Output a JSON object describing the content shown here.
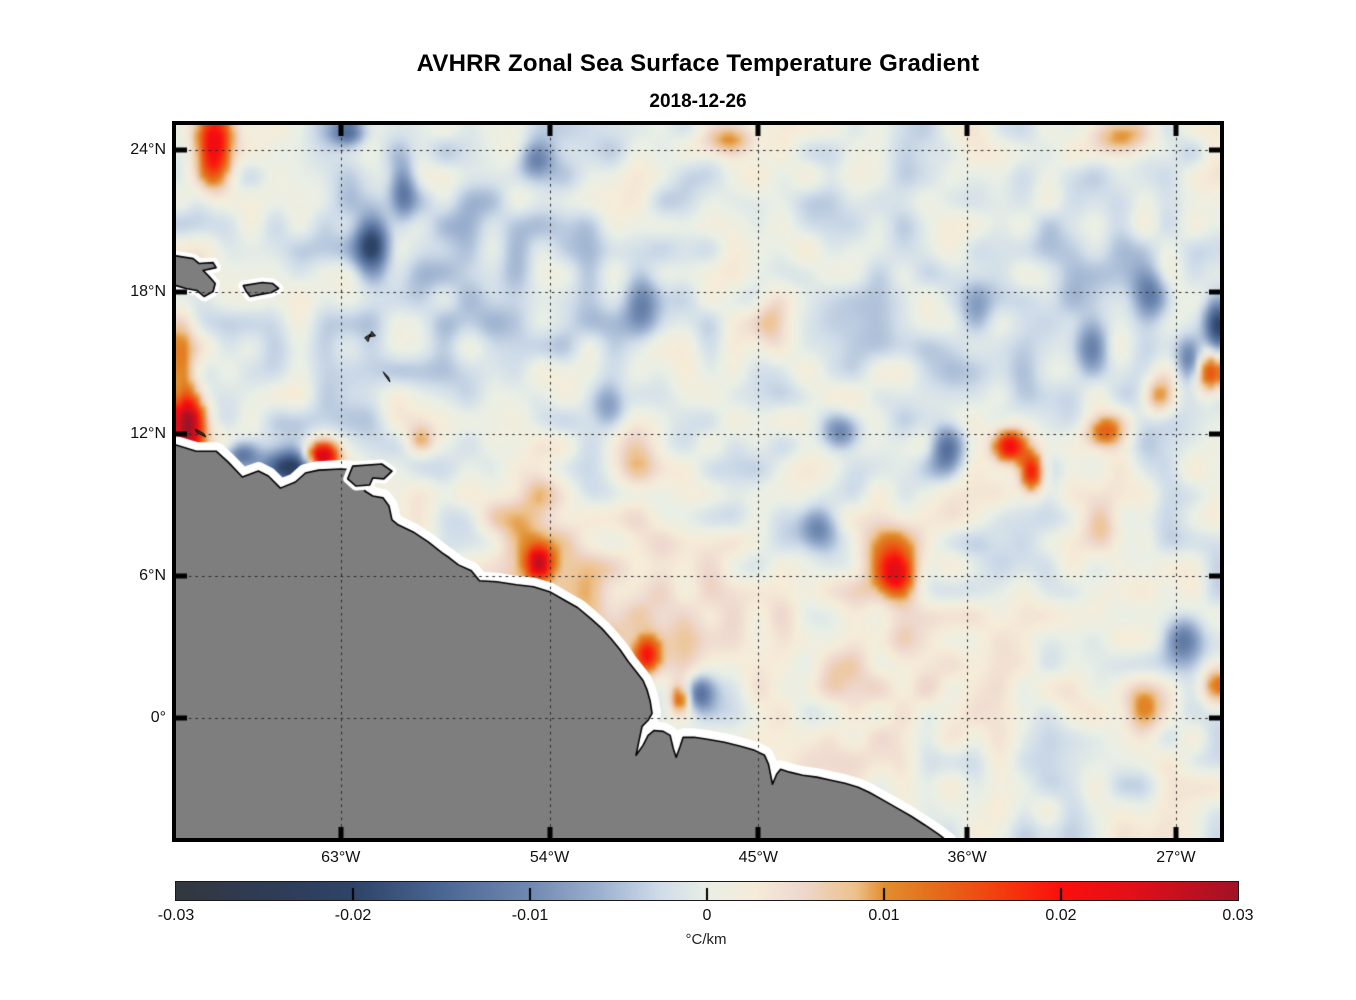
{
  "title": "AVHRR Zonal Sea Surface Temperature Gradient",
  "subtitle": "2018-12-26",
  "chart_data": {
    "type": "heatmap",
    "description": "Geographic map of zonal SST gradient over the western tropical Atlantic; smoothed anomaly field (blue = negative, orange/red = positive) with gray land mask and white coastal data-gap halo; dotted lat/lon graticule.",
    "geo": {
      "lon_range": [
        -70.1,
        -25.1
      ],
      "lat_range": [
        -5.05,
        25.05
      ]
    },
    "x_ticks": [
      {
        "value": -63,
        "label": "63°W"
      },
      {
        "value": -54,
        "label": "54°W"
      },
      {
        "value": -45,
        "label": "45°W"
      },
      {
        "value": -36,
        "label": "36°W"
      },
      {
        "value": -27,
        "label": "27°W"
      }
    ],
    "y_ticks": [
      {
        "value": 24,
        "label": "24°N"
      },
      {
        "value": 18,
        "label": "18°N"
      },
      {
        "value": 12,
        "label": "12°N"
      },
      {
        "value": 6,
        "label": "6°N"
      },
      {
        "value": 0,
        "label": "0°"
      }
    ],
    "grid_style": "dotted",
    "land_color": "#7e7e7e",
    "coast_line_color": "#000000",
    "coast_halo_color": "#ffffff",
    "colorbar": {
      "min": -0.03,
      "max": 0.03,
      "tick_labels": [
        "-0.03",
        "-0.02",
        "-0.01",
        "0",
        "0.01",
        "0.02",
        "0.03"
      ],
      "tick_values": [
        -0.03,
        -0.02,
        -0.01,
        0,
        0.01,
        0.02,
        0.03
      ],
      "units_label": "°C/km",
      "stops": [
        {
          "t": 0.0,
          "c": "#33383f"
        },
        {
          "t": 0.085,
          "c": "#2f3c55"
        },
        {
          "t": 0.167,
          "c": "#2e4468"
        },
        {
          "t": 0.25,
          "c": "#4a6694"
        },
        {
          "t": 0.333,
          "c": "#7089b1"
        },
        {
          "t": 0.4,
          "c": "#9db2d0"
        },
        {
          "t": 0.455,
          "c": "#cfdce9"
        },
        {
          "t": 0.5,
          "c": "#e9efe6"
        },
        {
          "t": 0.545,
          "c": "#f6ecd8"
        },
        {
          "t": 0.59,
          "c": "#eed8cf"
        },
        {
          "t": 0.64,
          "c": "#edc18b"
        },
        {
          "t": 0.667,
          "c": "#e18f2e"
        },
        {
          "t": 0.71,
          "c": "#e4701c"
        },
        {
          "t": 0.78,
          "c": "#f43a0e"
        },
        {
          "t": 0.833,
          "c": "#fb0f0d"
        },
        {
          "t": 0.9,
          "c": "#e30f18"
        },
        {
          "t": 1.0,
          "c": "#a31226"
        }
      ]
    },
    "noise": {
      "seed": 11,
      "amplitude": 0.005,
      "coarse_nx": 44,
      "coarse_ny": 30
    },
    "features_format": [
      "lon_deg",
      "lat_deg",
      "amplitude_C_per_km",
      "sigma_lon_deg",
      "sigma_lat_deg"
    ],
    "features": [
      [
        -50.5,
        4.5,
        0.006,
        3.5,
        2.5
      ],
      [
        -40.0,
        2.0,
        0.004,
        4.0,
        2.5
      ],
      [
        -57.0,
        19.5,
        -0.003,
        5.0,
        3.5
      ],
      [
        -33.0,
        18.0,
        -0.002,
        4.0,
        4.0
      ],
      [
        -55.0,
        8.5,
        0.008,
        1.1,
        1.7
      ],
      [
        -50.3,
        11.3,
        0.008,
        0.8,
        1.3
      ],
      [
        -68.45,
        24.0,
        0.026,
        0.6,
        1.2
      ],
      [
        -69.6,
        12.3,
        0.03,
        0.5,
        1.1
      ],
      [
        -69.9,
        15.3,
        0.012,
        0.45,
        1.2
      ],
      [
        -63.8,
        11.05,
        0.028,
        0.5,
        0.45
      ],
      [
        -54.45,
        6.55,
        0.02,
        0.38,
        0.5
      ],
      [
        -49.8,
        2.7,
        0.016,
        0.4,
        0.55
      ],
      [
        -48.4,
        0.8,
        0.012,
        0.3,
        0.4
      ],
      [
        -39.3,
        6.9,
        0.013,
        1.0,
        1.2
      ],
      [
        -39.1,
        6.1,
        0.012,
        0.5,
        0.55
      ],
      [
        -34.2,
        11.5,
        0.022,
        0.5,
        0.5
      ],
      [
        -33.2,
        10.4,
        0.021,
        0.38,
        0.6
      ],
      [
        -30.1,
        12.1,
        0.013,
        0.6,
        0.5
      ],
      [
        -25.6,
        14.7,
        0.02,
        0.55,
        0.75
      ],
      [
        -46.3,
        24.4,
        0.01,
        0.9,
        0.5
      ],
      [
        -29.4,
        24.5,
        0.01,
        0.9,
        0.55
      ],
      [
        -59.55,
        11.7,
        0.012,
        0.45,
        0.45
      ],
      [
        -44.3,
        16.8,
        0.008,
        0.6,
        1.0
      ],
      [
        -27.8,
        13.6,
        0.012,
        0.5,
        0.6
      ],
      [
        -30.0,
        8.0,
        0.008,
        0.7,
        0.9
      ],
      [
        -28.5,
        0.5,
        0.008,
        0.8,
        0.8
      ],
      [
        -25.2,
        1.5,
        0.012,
        0.5,
        0.7
      ],
      [
        -61.65,
        20.1,
        -0.018,
        0.5,
        0.85
      ],
      [
        -62.7,
        24.75,
        -0.014,
        0.5,
        0.4
      ],
      [
        -60.3,
        22.3,
        -0.011,
        0.38,
        0.85
      ],
      [
        -65.3,
        10.55,
        -0.022,
        0.85,
        0.5
      ],
      [
        -67.3,
        11.1,
        -0.013,
        0.5,
        0.4
      ],
      [
        -25.2,
        16.5,
        -0.02,
        0.4,
        1.0
      ],
      [
        -26.3,
        14.9,
        -0.018,
        0.45,
        0.65
      ],
      [
        -28.1,
        17.8,
        -0.013,
        0.55,
        0.65
      ],
      [
        -47.6,
        1.05,
        -0.015,
        0.45,
        0.55
      ],
      [
        -42.5,
        8.1,
        -0.012,
        0.6,
        0.65
      ],
      [
        -36.9,
        11.3,
        -0.012,
        0.5,
        0.75
      ],
      [
        -26.7,
        3.3,
        -0.011,
        0.55,
        0.65
      ],
      [
        -30.6,
        15.6,
        -0.012,
        0.5,
        0.85
      ],
      [
        -54.6,
        23.6,
        -0.01,
        0.55,
        0.55
      ],
      [
        -51.4,
        13.4,
        -0.01,
        0.5,
        0.6
      ],
      [
        -41.4,
        12.0,
        -0.01,
        0.55,
        0.5
      ],
      [
        -50.0,
        17.5,
        -0.008,
        0.5,
        0.8
      ],
      [
        -35.6,
        17.6,
        -0.009,
        0.5,
        0.7
      ]
    ],
    "land_polygons": {
      "south_america_mainland": [
        [
          -71.2,
          11.54
        ],
        [
          -70.1,
          11.54
        ],
        [
          -69.23,
          11.28
        ],
        [
          -68.37,
          11.28
        ],
        [
          -67.85,
          10.82
        ],
        [
          -67.24,
          10.19
        ],
        [
          -66.55,
          10.44
        ],
        [
          -66.12,
          10.23
        ],
        [
          -65.6,
          9.72
        ],
        [
          -64.95,
          9.98
        ],
        [
          -64.52,
          10.36
        ],
        [
          -63.95,
          10.48
        ],
        [
          -63.0,
          10.53
        ],
        [
          -62.31,
          10.48
        ],
        [
          -62.14,
          10.19
        ],
        [
          -61.96,
          9.6
        ],
        [
          -61.62,
          9.39
        ],
        [
          -61.18,
          9.31
        ],
        [
          -60.92,
          8.97
        ],
        [
          -60.79,
          8.38
        ],
        [
          -60.53,
          8.17
        ],
        [
          -59.88,
          7.87
        ],
        [
          -59.23,
          7.45
        ],
        [
          -58.63,
          6.99
        ],
        [
          -58.32,
          6.78
        ],
        [
          -57.93,
          6.48
        ],
        [
          -57.37,
          6.23
        ],
        [
          -57.02,
          5.81
        ],
        [
          -56.29,
          5.77
        ],
        [
          -55.43,
          5.64
        ],
        [
          -54.69,
          5.56
        ],
        [
          -54.0,
          5.35
        ],
        [
          -53.39,
          5.01
        ],
        [
          -52.78,
          4.67
        ],
        [
          -52.22,
          4.21
        ],
        [
          -51.74,
          3.79
        ],
        [
          -51.31,
          3.32
        ],
        [
          -50.96,
          2.9
        ],
        [
          -50.61,
          2.4
        ],
        [
          -50.27,
          1.98
        ],
        [
          -49.97,
          1.6
        ],
        [
          -49.79,
          1.18
        ],
        [
          -49.66,
          0.72
        ],
        [
          -49.58,
          0.21
        ],
        [
          -49.75,
          -0.08
        ],
        [
          -50.01,
          -0.34
        ],
        [
          -50.14,
          -0.93
        ],
        [
          -50.27,
          -1.56
        ],
        [
          -49.97,
          -1.14
        ],
        [
          -49.75,
          -0.72
        ],
        [
          -49.49,
          -0.51
        ],
        [
          -49.1,
          -0.55
        ],
        [
          -48.8,
          -0.72
        ],
        [
          -48.67,
          -1.26
        ],
        [
          -48.54,
          -1.64
        ],
        [
          -48.37,
          -1.18
        ],
        [
          -48.24,
          -0.8
        ],
        [
          -47.76,
          -0.8
        ],
        [
          -47.2,
          -0.88
        ],
        [
          -46.46,
          -1.01
        ],
        [
          -45.77,
          -1.18
        ],
        [
          -45.16,
          -1.35
        ],
        [
          -44.73,
          -1.56
        ],
        [
          -44.56,
          -1.94
        ],
        [
          -44.39,
          -2.78
        ],
        [
          -44.21,
          -2.36
        ],
        [
          -44.04,
          -2.15
        ],
        [
          -43.65,
          -2.27
        ],
        [
          -43.09,
          -2.4
        ],
        [
          -42.48,
          -2.48
        ],
        [
          -41.87,
          -2.61
        ],
        [
          -41.27,
          -2.74
        ],
        [
          -40.7,
          -2.91
        ],
        [
          -40.23,
          -3.12
        ],
        [
          -39.62,
          -3.45
        ],
        [
          -39.02,
          -3.79
        ],
        [
          -38.41,
          -4.13
        ],
        [
          -37.81,
          -4.51
        ],
        [
          -37.24,
          -4.89
        ],
        [
          -36.85,
          -5.18
        ],
        [
          -36.6,
          -6.0
        ],
        [
          -71.2,
          -6.0
        ]
      ],
      "hispaniola_east": [
        [
          -70.6,
          19.6
        ],
        [
          -69.36,
          19.41
        ],
        [
          -69.1,
          19.2
        ],
        [
          -68.5,
          19.24
        ],
        [
          -68.37,
          19.03
        ],
        [
          -68.93,
          18.91
        ],
        [
          -68.67,
          18.65
        ],
        [
          -68.41,
          18.36
        ],
        [
          -68.5,
          18.02
        ],
        [
          -68.89,
          17.81
        ],
        [
          -69.19,
          18.06
        ],
        [
          -69.67,
          18.15
        ],
        [
          -70.1,
          18.27
        ],
        [
          -70.6,
          18.4
        ]
      ],
      "puerto_rico": [
        [
          -67.2,
          18.27
        ],
        [
          -66.38,
          18.4
        ],
        [
          -65.94,
          18.36
        ],
        [
          -65.68,
          18.15
        ],
        [
          -65.99,
          17.98
        ],
        [
          -66.51,
          17.89
        ],
        [
          -66.9,
          17.81
        ],
        [
          -67.07,
          18.02
        ]
      ],
      "trinidad_paria": [
        [
          -62.48,
          10.65
        ],
        [
          -61.23,
          10.74
        ],
        [
          -60.79,
          10.44
        ],
        [
          -61.14,
          10.11
        ],
        [
          -61.62,
          10.15
        ],
        [
          -61.75,
          9.85
        ],
        [
          -62.35,
          9.81
        ],
        [
          -62.7,
          10.11
        ],
        [
          -62.57,
          10.44
        ]
      ]
    },
    "island_marks": {
      "curacao_bonaire": [
        [
          -69.25,
          12.2
        ],
        [
          -68.9,
          12.02
        ],
        [
          -68.82,
          11.88
        ],
        [
          -69.18,
          12.06
        ]
      ],
      "guadeloupe_a": [
        [
          -61.95,
          16.08
        ],
        [
          -61.72,
          16.22
        ],
        [
          -61.82,
          15.92
        ]
      ],
      "guadeloupe_b": [
        [
          -61.66,
          16.33
        ],
        [
          -61.5,
          16.15
        ],
        [
          -61.72,
          16.12
        ]
      ],
      "martinique": [
        [
          -61.16,
          14.62
        ],
        [
          -60.94,
          14.4
        ],
        [
          -60.88,
          14.2
        ],
        [
          -61.06,
          14.44
        ]
      ]
    }
  }
}
